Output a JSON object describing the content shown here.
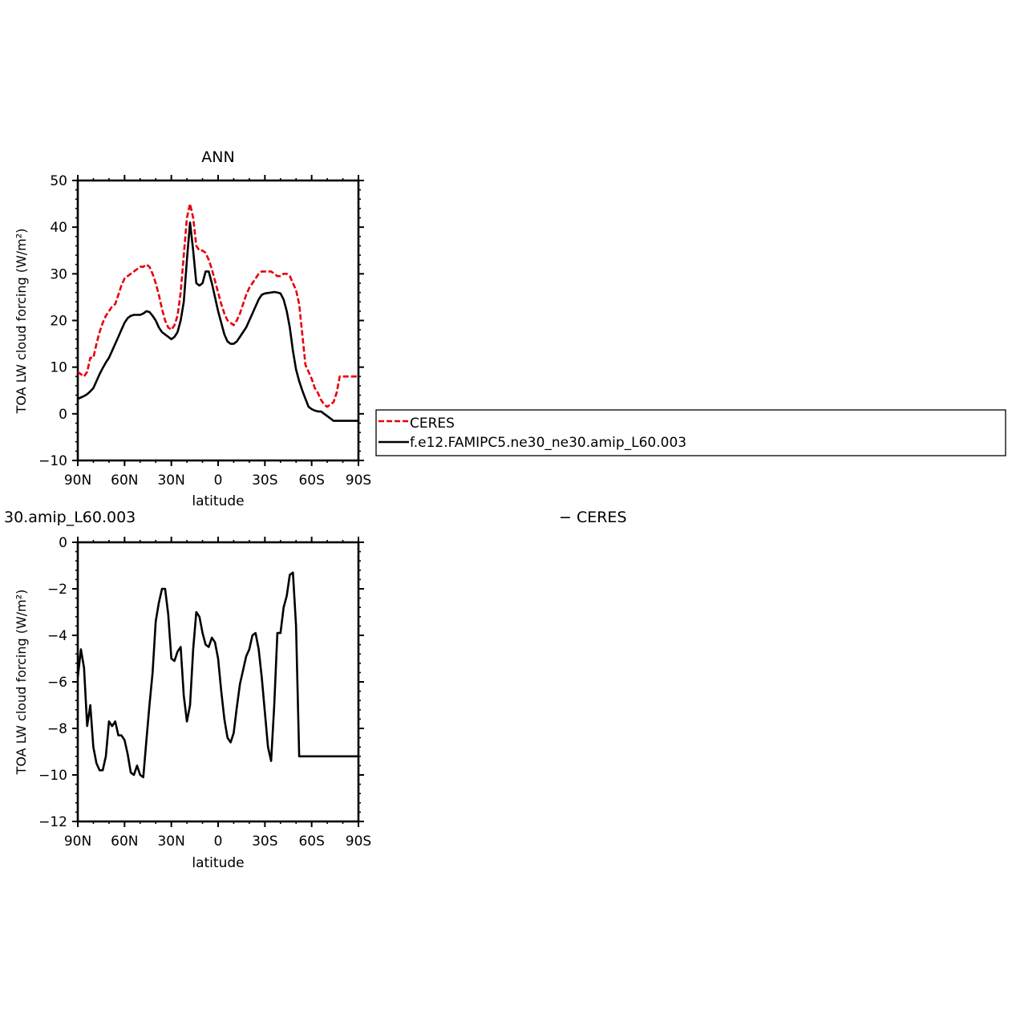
{
  "chart_data": [
    {
      "type": "line",
      "title": "ANN",
      "xlabel": "latitude",
      "ylabel": "TOA LW cloud forcing (W/m²)",
      "xlim": [
        90,
        -90
      ],
      "ylim": [
        -10,
        50
      ],
      "x_ticks": [
        90,
        60,
        30,
        0,
        -30,
        -60,
        -90
      ],
      "x_tick_labels": [
        "90N",
        "60N",
        "30N",
        "0",
        "30S",
        "60S",
        "90S"
      ],
      "y_ticks": [
        -10,
        0,
        10,
        20,
        30,
        40,
        50
      ],
      "y_tick_labels": [
        "−10",
        "0",
        "10",
        "20",
        "30",
        "40",
        "50"
      ],
      "legend": {
        "placement": "right",
        "entries": [
          "CERES",
          "f.e12.FAMIPC5.ne30_ne30.amip_L60.003"
        ]
      },
      "series": [
        {
          "name": "CERES",
          "color": "#e8000b",
          "dash": true,
          "x": [
            90,
            88,
            86,
            84,
            82,
            80,
            78,
            76,
            74,
            72,
            70,
            68,
            66,
            64,
            62,
            60,
            58,
            56,
            54,
            52,
            50,
            48,
            46,
            44,
            42,
            40,
            38,
            36,
            34,
            32,
            30,
            28,
            26,
            24,
            22,
            20,
            18,
            16,
            14,
            12,
            10,
            8,
            6,
            4,
            2,
            0,
            -2,
            -4,
            -6,
            -8,
            -10,
            -12,
            -14,
            -16,
            -18,
            -20,
            -22,
            -24,
            -26,
            -28,
            -30,
            -32,
            -34,
            -36,
            -38,
            -40,
            -42,
            -44,
            -46,
            -48,
            -50,
            -52,
            -54,
            -56,
            -58,
            -60,
            -62,
            -64,
            -66,
            -68,
            -70,
            -72,
            -74,
            -76,
            -78,
            -80,
            -82,
            -84,
            -86,
            -88,
            -90
          ],
          "values": [
            9,
            8.5,
            8,
            9,
            12,
            12,
            15,
            17.5,
            19.5,
            21,
            22,
            23,
            23.5,
            25.5,
            27.5,
            29,
            29.5,
            30,
            30.5,
            31,
            31.5,
            31.5,
            32,
            31.5,
            30,
            28,
            25.5,
            22.5,
            20,
            18.5,
            18,
            19,
            21,
            26,
            34,
            42,
            45,
            42,
            36,
            35,
            35,
            34.5,
            33,
            31,
            28.5,
            26,
            23.5,
            21.5,
            20,
            19.5,
            19,
            20,
            21.5,
            23.5,
            25.5,
            27,
            28,
            29,
            30,
            30.5,
            30.5,
            30.5,
            30.5,
            30,
            29.5,
            29.5,
            30,
            30,
            29.5,
            28,
            26.5,
            23.5,
            17,
            10.5,
            9,
            7.5,
            5.5,
            4.5,
            3,
            2,
            1.5,
            2,
            2.5,
            4.5,
            8,
            8,
            8,
            8,
            8,
            8,
            8
          ]
        },
        {
          "name": "f.e12.FAMIPC5.ne30_ne30.amip_L60.003",
          "color": "#000000",
          "dash": false,
          "x": [
            90,
            88,
            86,
            84,
            82,
            80,
            78,
            76,
            74,
            72,
            70,
            68,
            66,
            64,
            62,
            60,
            58,
            56,
            54,
            52,
            50,
            48,
            46,
            44,
            42,
            40,
            38,
            36,
            34,
            32,
            30,
            28,
            26,
            24,
            22,
            20,
            18,
            16,
            14,
            12,
            10,
            8,
            6,
            4,
            2,
            0,
            -2,
            -4,
            -6,
            -8,
            -10,
            -12,
            -14,
            -16,
            -18,
            -20,
            -22,
            -24,
            -26,
            -28,
            -30,
            -32,
            -34,
            -36,
            -38,
            -40,
            -42,
            -44,
            -46,
            -48,
            -50,
            -52,
            -54,
            -56,
            -58,
            -60,
            -62,
            -64,
            -66,
            -68,
            -70,
            -72,
            -74,
            -76,
            -78,
            -80,
            -82,
            -84,
            -86,
            -88,
            -90
          ],
          "values": [
            3.2,
            3.5,
            3.8,
            4.2,
            4.8,
            5.5,
            7,
            8.5,
            9.8,
            11,
            12,
            13.5,
            15,
            16.5,
            18,
            19.5,
            20.5,
            21,
            21.2,
            21.2,
            21.2,
            21.5,
            22,
            21.8,
            21,
            20,
            18.5,
            17.5,
            17,
            16.5,
            16,
            16.5,
            17.5,
            20,
            24,
            33,
            41,
            35,
            28,
            27.5,
            28,
            30.5,
            30.5,
            28,
            25,
            22,
            19.5,
            17,
            15.5,
            15,
            15,
            15.5,
            16.5,
            17.5,
            18.5,
            20,
            21.5,
            23,
            24.5,
            25.5,
            25.8,
            25.9,
            26,
            26.1,
            26,
            25.8,
            24.5,
            22,
            18.5,
            13.5,
            9.5,
            7,
            5,
            3.2,
            1.5,
            1,
            0.7,
            0.5,
            0.5,
            0,
            -0.5,
            -1,
            -1.5,
            -1.5,
            -1.5,
            -1.5,
            -1.5,
            -1.5,
            -1.5,
            -1.5,
            -1.5
          ]
        }
      ]
    },
    {
      "type": "line",
      "title_left": "30.amip_L60.003",
      "title_right": "− CERES",
      "xlabel": "latitude",
      "ylabel": "TOA LW cloud forcing (W/m²)",
      "xlim": [
        90,
        -90
      ],
      "ylim": [
        -12,
        0
      ],
      "x_ticks": [
        90,
        60,
        30,
        0,
        -30,
        -60,
        -90
      ],
      "x_tick_labels": [
        "90N",
        "60N",
        "30N",
        "0",
        "30S",
        "60S",
        "90S"
      ],
      "y_ticks": [
        -12,
        -10,
        -8,
        -6,
        -4,
        -2,
        0
      ],
      "y_tick_labels": [
        "−12",
        "−10",
        "−8",
        "−6",
        "−4",
        "−2",
        "0"
      ],
      "series": [
        {
          "color": "#000000",
          "x": [
            90,
            88,
            86,
            84,
            82,
            80,
            78,
            76,
            74,
            72,
            70,
            68,
            66,
            64,
            62,
            60,
            58,
            56,
            54,
            52,
            50,
            48,
            46,
            44,
            42,
            40,
            38,
            36,
            34,
            32,
            30,
            28,
            26,
            24,
            22,
            20,
            18,
            16,
            14,
            12,
            10,
            8,
            6,
            4,
            2,
            0,
            -2,
            -4,
            -6,
            -8,
            -10,
            -12,
            -14,
            -16,
            -18,
            -20,
            -22,
            -24,
            -26,
            -28,
            -30,
            -32,
            -34,
            -36,
            -38,
            -40,
            -42,
            -44,
            -46,
            -48,
            -50,
            -52,
            -54,
            -56,
            -58,
            -60,
            -62,
            -64,
            -66,
            -68,
            -70,
            -72,
            -74,
            -76,
            -78,
            -80,
            -82,
            -84,
            -86,
            -88,
            -90
          ],
          "values": [
            -5.8,
            -4.6,
            -5.4,
            -7.9,
            -7.0,
            -8.8,
            -9.5,
            -9.8,
            -9.8,
            -9.2,
            -7.7,
            -7.9,
            -7.7,
            -8.3,
            -8.3,
            -8.5,
            -9.1,
            -9.9,
            -10.0,
            -9.6,
            -10.0,
            -10.1,
            -8.5,
            -7.0,
            -5.6,
            -3.4,
            -2.6,
            -2.0,
            -2.0,
            -3.1,
            -5.0,
            -5.1,
            -4.7,
            -4.5,
            -6.6,
            -7.7,
            -7.0,
            -4.6,
            -3.0,
            -3.2,
            -3.9,
            -4.4,
            -4.5,
            -4.1,
            -4.3,
            -5.0,
            -6.4,
            -7.6,
            -8.4,
            -8.6,
            -8.2,
            -7.1,
            -6.1,
            -5.5,
            -4.9,
            -4.6,
            -4.0,
            -3.9,
            -4.6,
            -5.8,
            -7.3,
            -8.8,
            -9.4,
            -7.0,
            -3.9,
            -3.9,
            -2.8,
            -2.3,
            -1.4,
            -1.3,
            -3.6,
            -9.2,
            -9.2,
            -9.2,
            -9.2,
            -9.2,
            -9.2,
            -9.2,
            -9.2,
            -9.2,
            -9.2,
            -9.2,
            -9.2,
            -9.2,
            -9.2,
            -9.2,
            -9.2,
            -9.2,
            -9.2,
            -9.2,
            -9.2
          ]
        }
      ]
    }
  ]
}
